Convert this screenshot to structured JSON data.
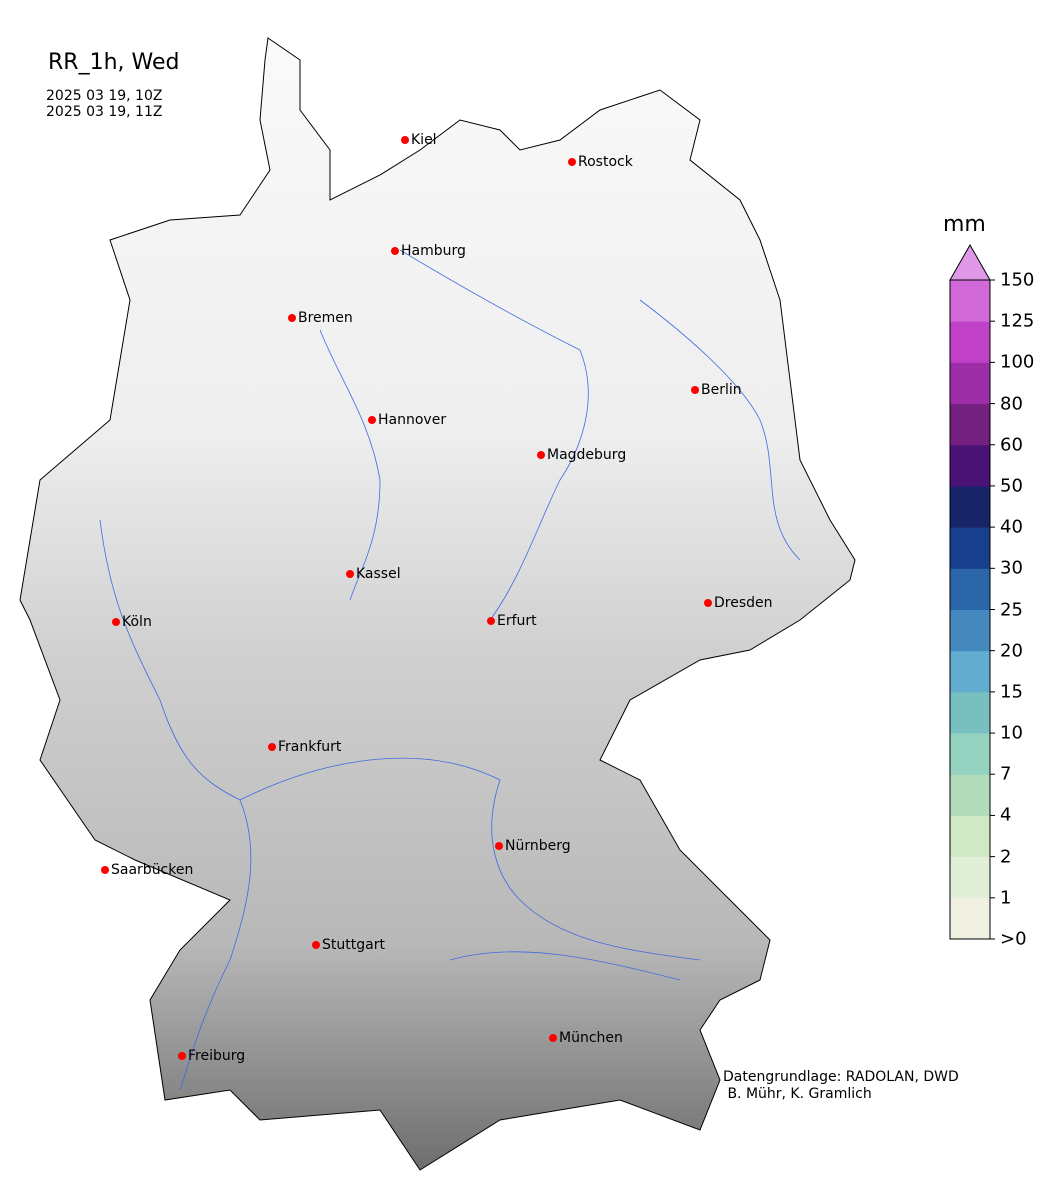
{
  "header": {
    "title": "RR_1h, Wed",
    "time_from": "2025 03 19, 10Z",
    "time_to": "2025 03 19, 11Z"
  },
  "colorbar": {
    "unit": "mm",
    "ticks": [
      ">0",
      "1",
      "2",
      "4",
      "7",
      "10",
      "15",
      "20",
      "25",
      "30",
      "40",
      "50",
      "60",
      "80",
      "100",
      "125",
      "150"
    ],
    "colors": [
      "#f0f0e0",
      "#e2efd8",
      "#d0e8c4",
      "#b2dbbc",
      "#96d2c0",
      "#78c0c0",
      "#62acd0",
      "#4689bf",
      "#2b66a8",
      "#173f8e",
      "#182468",
      "#4a1275",
      "#74207e",
      "#9e2ea8",
      "#c040c8",
      "#d068d8"
    ],
    "extend_color": "#e098e8"
  },
  "cities": [
    {
      "name": "Kiel"
    },
    {
      "name": "Rostock"
    },
    {
      "name": "Hamburg"
    },
    {
      "name": "Bremen"
    },
    {
      "name": "Berlin"
    },
    {
      "name": "Hannover"
    },
    {
      "name": "Magdeburg"
    },
    {
      "name": "Kassel"
    },
    {
      "name": "Köln"
    },
    {
      "name": "Erfurt"
    },
    {
      "name": "Dresden"
    },
    {
      "name": "Frankfurt"
    },
    {
      "name": "Nürnberg"
    },
    {
      "name": "Saarbücken"
    },
    {
      "name": "Stuttgart"
    },
    {
      "name": "München"
    },
    {
      "name": "Freiburg"
    }
  ],
  "map": {
    "marker_color": "#ff0000",
    "river_color": "#4169e1",
    "precipitation": "none"
  },
  "credit": "Datengrundlage: RADOLAN, DWD\n B. Mühr, K. Gramlich"
}
